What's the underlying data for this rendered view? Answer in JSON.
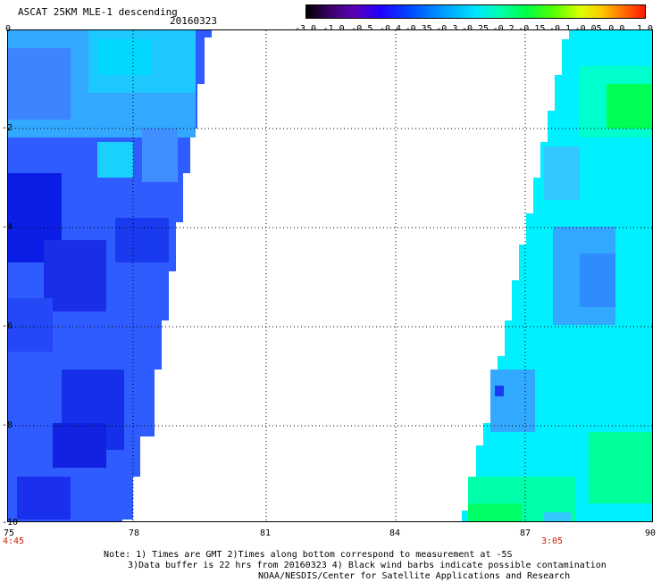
{
  "header": {
    "title": "ASCAT 25KM MLE-1 descending",
    "date": "20160323"
  },
  "colorbar": {
    "ticks": [
      "-3.0",
      "-1.0",
      "-0.5",
      "-0.4",
      "-0.35",
      "-0.3",
      "-0.25",
      "-0.2",
      "-0.15",
      "-0.1",
      "-0.05",
      "0.0",
      "1.0"
    ],
    "colors": [
      "#000000",
      "#3b0069",
      "#5a00b4",
      "#2200ff",
      "#0044ff",
      "#0099ff",
      "#00e5ff",
      "#00ffb0",
      "#00ff44",
      "#55ff00",
      "#ddff00",
      "#ffcc00",
      "#ff7700",
      "#ff1800"
    ]
  },
  "map": {
    "x_axis_labels": [
      "75",
      "78",
      "81",
      "84",
      "87",
      "90"
    ],
    "y_axis_labels": [
      "0",
      "-2",
      "-4",
      "-6",
      "-8",
      "-10"
    ],
    "time_left": "4:45",
    "time_right": "3:05",
    "swath_colors": {
      "deep_blue": "#0a1ee6",
      "blue": "#2f5cff",
      "light_blue": "#33a8ff",
      "cyan": "#00f0ff",
      "aqua": "#00ffcc",
      "green": "#00ff55"
    }
  },
  "notes": {
    "line1": "Note: 1) Times are GMT 2)Times along bottom correspond to measurement at -5S",
    "line2": "3)Data buffer is 22 hrs from 20160323 4) Black wind barbs indicate possible contamination",
    "line3": "NOAA/NESDIS/Center for Satellite Applications and Research"
  }
}
